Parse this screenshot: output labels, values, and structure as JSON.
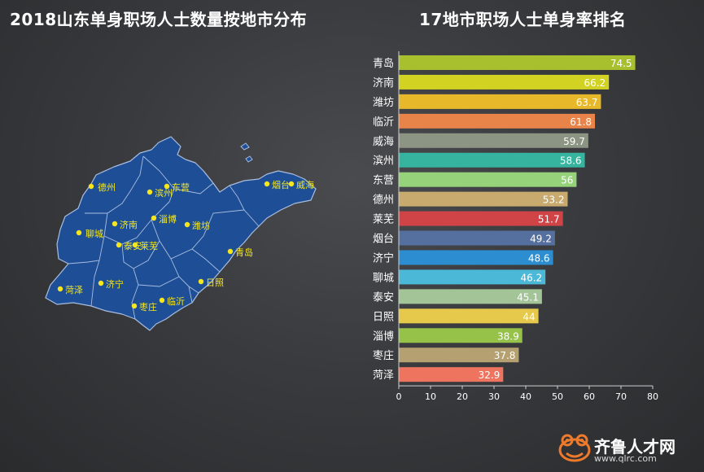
{
  "map": {
    "title": "2018山东单身职场人士数量按地市分布",
    "land_color": "#1e4f96",
    "dot_color": "#f5e61e",
    "cities": [
      {
        "name": "德州"
      },
      {
        "name": "滨州"
      },
      {
        "name": "东营"
      },
      {
        "name": "烟台"
      },
      {
        "name": "威海"
      },
      {
        "name": "聊城"
      },
      {
        "name": "济南"
      },
      {
        "name": "淄博"
      },
      {
        "name": "潍坊"
      },
      {
        "name": "泰安"
      },
      {
        "name": "莱芜"
      },
      {
        "name": "青岛"
      },
      {
        "name": "菏泽"
      },
      {
        "name": "济宁"
      },
      {
        "name": "日照"
      },
      {
        "name": "枣庄"
      },
      {
        "name": "临沂"
      }
    ]
  },
  "chart_data": {
    "type": "bar",
    "orientation": "horizontal",
    "title": "17地市职场人士单身率排名",
    "categories": [
      "青岛",
      "济南",
      "潍坊",
      "临沂",
      "威海",
      "滨州",
      "东营",
      "德州",
      "莱芜",
      "烟台",
      "济宁",
      "聊城",
      "泰安",
      "日照",
      "淄博",
      "枣庄",
      "菏泽"
    ],
    "values": [
      74.5,
      66.2,
      63.7,
      61.8,
      59.7,
      58.6,
      56,
      53.2,
      51.7,
      49.2,
      48.6,
      46.2,
      45.1,
      44,
      38.9,
      37.8,
      32.9
    ],
    "colors": [
      "#a8bf2e",
      "#d2d222",
      "#e6b82a",
      "#e8834a",
      "#8c9484",
      "#36b4a0",
      "#96d27a",
      "#c8aa6e",
      "#d04448",
      "#55709e",
      "#2c8ed0",
      "#4cb8d8",
      "#a2c496",
      "#e6c84a",
      "#96c24a",
      "#b4a070",
      "#ee7460"
    ],
    "xlim": [
      0,
      80
    ],
    "xticks": [
      0,
      10,
      20,
      30,
      40,
      50,
      60,
      70,
      80
    ],
    "grid": false,
    "legend": "none"
  },
  "watermark": {
    "name": "齐鲁人才网",
    "url": "www.qlrc.com"
  }
}
